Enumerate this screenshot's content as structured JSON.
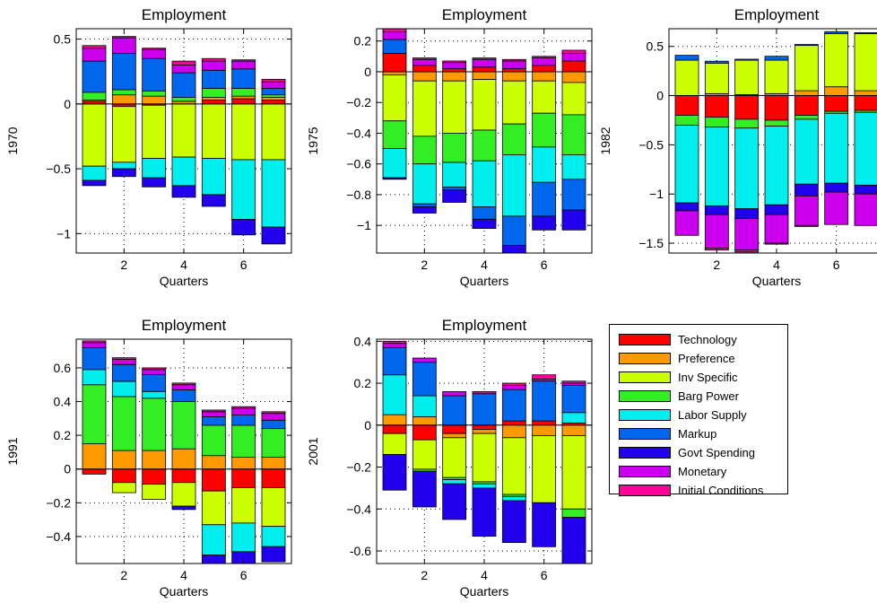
{
  "legend": {
    "items": [
      {
        "name": "Technology",
        "color": "#FF0000"
      },
      {
        "name": "Preference",
        "color": "#FF9900"
      },
      {
        "name": "Inv Specific",
        "color": "#CCFF00"
      },
      {
        "name": "Barg Power",
        "color": "#33EE22"
      },
      {
        "name": "Labor Supply",
        "color": "#00EEEE"
      },
      {
        "name": "Markup",
        "color": "#0066EE"
      },
      {
        "name": "Govt Spending",
        "color": "#2200EE"
      },
      {
        "name": "Monetary",
        "color": "#CC00EE"
      },
      {
        "name": "Initial Conditions",
        "color": "#FF0099"
      }
    ]
  },
  "chart_data": [
    {
      "type": "bar",
      "title": "Employment",
      "xlabel": "Quarters",
      "ylabel": "1970",
      "xlim": [
        0.4,
        7.6
      ],
      "ylim": [
        -1.15,
        0.58
      ],
      "xticks": [
        2,
        4,
        6
      ],
      "yticks": [
        {
          "v": -1,
          "label": "−1"
        },
        {
          "v": -0.5,
          "label": "−0.5"
        },
        {
          "v": 0,
          "label": "0"
        },
        {
          "v": 0.5,
          "label": "0.5"
        }
      ],
      "categories": [
        1,
        2,
        3,
        4,
        5,
        6,
        7
      ],
      "series": [
        {
          "name": "Technology",
          "values": [
            0.02,
            -0.02,
            -0.01,
            0.0,
            0.03,
            0.04,
            0.03
          ]
        },
        {
          "name": "Preference",
          "values": [
            0.01,
            0.07,
            0.06,
            0.02,
            0.02,
            0.02,
            0.02
          ]
        },
        {
          "name": "Inv Specific",
          "values": [
            -0.48,
            -0.43,
            -0.41,
            -0.41,
            -0.42,
            -0.43,
            -0.43
          ]
        },
        {
          "name": "Barg Power",
          "values": [
            0.06,
            0.04,
            0.04,
            0.03,
            0.07,
            0.06,
            0.02
          ]
        },
        {
          "name": "Labor Supply",
          "values": [
            -0.11,
            -0.05,
            -0.15,
            -0.22,
            -0.28,
            -0.46,
            -0.52
          ]
        },
        {
          "name": "Markup",
          "values": [
            0.24,
            0.28,
            0.25,
            0.19,
            0.14,
            0.15,
            0.05
          ]
        },
        {
          "name": "Govt Spending",
          "values": [
            -0.04,
            -0.06,
            -0.07,
            -0.09,
            -0.09,
            -0.12,
            -0.13
          ]
        },
        {
          "name": "Monetary",
          "values": [
            0.1,
            0.12,
            0.07,
            0.06,
            0.07,
            0.06,
            0.05
          ]
        },
        {
          "name": "Initial Conditions",
          "values": [
            0.02,
            0.01,
            0.01,
            0.03,
            0.02,
            0.01,
            0.02
          ]
        }
      ]
    },
    {
      "type": "bar",
      "title": "Employment",
      "xlabel": "Quarters",
      "ylabel": "1975",
      "xlim": [
        0.4,
        7.6
      ],
      "ylim": [
        -1.18,
        0.28
      ],
      "xticks": [
        2,
        4,
        6
      ],
      "yticks": [
        {
          "v": -1,
          "label": "−1"
        },
        {
          "v": -0.8,
          "label": "−0.8"
        },
        {
          "v": -0.6,
          "label": "−0.6"
        },
        {
          "v": -0.4,
          "label": "−0.4"
        },
        {
          "v": -0.2,
          "label": "−0.2"
        },
        {
          "v": 0,
          "label": "0"
        },
        {
          "v": 0.2,
          "label": "0.2"
        }
      ],
      "categories": [
        1,
        2,
        3,
        4,
        5,
        6,
        7
      ],
      "series": [
        {
          "name": "Technology",
          "values": [
            0.12,
            0.04,
            0.02,
            0.03,
            0.02,
            0.04,
            0.07
          ]
        },
        {
          "name": "Preference",
          "values": [
            -0.02,
            -0.06,
            -0.06,
            -0.05,
            -0.06,
            -0.06,
            -0.07
          ]
        },
        {
          "name": "Inv Specific",
          "values": [
            -0.3,
            -0.36,
            -0.34,
            -0.33,
            -0.28,
            -0.21,
            -0.21
          ]
        },
        {
          "name": "Barg Power",
          "values": [
            -0.18,
            -0.18,
            -0.19,
            -0.2,
            -0.2,
            -0.22,
            -0.26
          ]
        },
        {
          "name": "Labor Supply",
          "values": [
            -0.19,
            -0.26,
            -0.16,
            -0.3,
            -0.4,
            -0.23,
            -0.16
          ]
        },
        {
          "name": "Markup",
          "values": [
            0.09,
            -0.02,
            -0.02,
            -0.08,
            -0.19,
            -0.22,
            -0.2
          ]
        },
        {
          "name": "Govt Spending",
          "values": [
            -0.01,
            -0.04,
            -0.08,
            -0.06,
            -0.1,
            -0.09,
            -0.13
          ]
        },
        {
          "name": "Monetary",
          "values": [
            0.05,
            0.04,
            0.04,
            0.05,
            0.05,
            0.05,
            0.05
          ]
        },
        {
          "name": "Initial Conditions",
          "values": [
            0.02,
            0.01,
            0.01,
            0.01,
            0.01,
            0.01,
            0.02
          ]
        }
      ]
    },
    {
      "type": "bar",
      "title": "Employment",
      "xlabel": "Quarters",
      "ylabel": "1982",
      "xlim": [
        0.4,
        7.6
      ],
      "ylim": [
        -1.6,
        0.68
      ],
      "xticks": [
        2,
        4,
        6
      ],
      "yticks": [
        {
          "v": -1.5,
          "label": "−1.5"
        },
        {
          "v": -1,
          "label": "−1"
        },
        {
          "v": -0.5,
          "label": "−0.5"
        },
        {
          "v": 0,
          "label": "0"
        },
        {
          "v": 0.5,
          "label": "0.5"
        }
      ],
      "categories": [
        1,
        2,
        3,
        4,
        5,
        6,
        7
      ],
      "series": [
        {
          "name": "Technology",
          "values": [
            -0.2,
            -0.22,
            -0.24,
            -0.25,
            -0.2,
            -0.16,
            -0.15
          ]
        },
        {
          "name": "Preference",
          "values": [
            0.0,
            0.02,
            0.01,
            0.02,
            0.05,
            0.09,
            0.05
          ]
        },
        {
          "name": "Inv Specific",
          "values": [
            0.36,
            0.31,
            0.35,
            0.34,
            0.46,
            0.54,
            0.58
          ]
        },
        {
          "name": "Barg Power",
          "values": [
            -0.1,
            -0.1,
            -0.09,
            -0.06,
            -0.04,
            -0.02,
            -0.02
          ]
        },
        {
          "name": "Labor Supply",
          "values": [
            -0.79,
            -0.8,
            -0.82,
            -0.8,
            -0.66,
            -0.71,
            -0.74
          ]
        },
        {
          "name": "Markup",
          "values": [
            0.05,
            0.02,
            0.01,
            0.04,
            0.01,
            0.02,
            0.01
          ]
        },
        {
          "name": "Govt Spending",
          "values": [
            -0.08,
            -0.09,
            -0.1,
            -0.1,
            -0.12,
            -0.09,
            -0.09
          ]
        },
        {
          "name": "Monetary",
          "values": [
            -0.25,
            -0.34,
            -0.32,
            -0.29,
            -0.3,
            -0.33,
            -0.32
          ]
        },
        {
          "name": "Initial Conditions",
          "values": [
            0.0,
            -0.02,
            -0.02,
            -0.01,
            -0.01,
            0.0,
            0.0
          ]
        }
      ]
    },
    {
      "type": "bar",
      "title": "Employment",
      "xlabel": "Quarters",
      "ylabel": "1991",
      "xlim": [
        0.4,
        7.6
      ],
      "ylim": [
        -0.56,
        0.77
      ],
      "xticks": [
        2,
        4,
        6
      ],
      "yticks": [
        {
          "v": -0.4,
          "label": "−0.4"
        },
        {
          "v": -0.2,
          "label": "−0.2"
        },
        {
          "v": 0,
          "label": "0"
        },
        {
          "v": 0.2,
          "label": "0.2"
        },
        {
          "v": 0.4,
          "label": "0.4"
        },
        {
          "v": 0.6,
          "label": "0.6"
        }
      ],
      "categories": [
        1,
        2,
        3,
        4,
        5,
        6,
        7
      ],
      "series": [
        {
          "name": "Technology",
          "values": [
            -0.03,
            -0.08,
            -0.09,
            -0.08,
            -0.13,
            -0.11,
            -0.11
          ]
        },
        {
          "name": "Preference",
          "values": [
            0.15,
            0.11,
            0.11,
            0.12,
            0.08,
            0.07,
            0.07
          ]
        },
        {
          "name": "Inv Specific",
          "values": [
            0.0,
            -0.06,
            -0.09,
            -0.14,
            -0.2,
            -0.21,
            -0.23
          ]
        },
        {
          "name": "Barg Power",
          "values": [
            0.35,
            0.32,
            0.31,
            0.28,
            0.18,
            0.19,
            0.17
          ]
        },
        {
          "name": "Labor Supply",
          "values": [
            0.09,
            0.09,
            0.04,
            0.0,
            -0.18,
            -0.17,
            -0.12
          ]
        },
        {
          "name": "Markup",
          "values": [
            0.13,
            0.1,
            0.1,
            0.07,
            0.05,
            0.06,
            0.05
          ]
        },
        {
          "name": "Govt Spending",
          "values": [
            0.0,
            0.0,
            0.0,
            -0.02,
            -0.05,
            -0.07,
            -0.09
          ]
        },
        {
          "name": "Monetary",
          "values": [
            0.03,
            0.03,
            0.03,
            0.03,
            0.03,
            0.04,
            0.04
          ]
        },
        {
          "name": "Initial Conditions",
          "values": [
            0.01,
            0.01,
            0.01,
            0.01,
            0.01,
            0.01,
            0.01
          ]
        }
      ]
    },
    {
      "type": "bar",
      "title": "Employment",
      "xlabel": "Quarters",
      "ylabel": "2001",
      "xlim": [
        0.4,
        7.6
      ],
      "ylim": [
        -0.66,
        0.41
      ],
      "xticks": [
        2,
        4,
        6
      ],
      "yticks": [
        {
          "v": -0.6,
          "label": "-0.6"
        },
        {
          "v": -0.4,
          "label": "−0.4"
        },
        {
          "v": -0.2,
          "label": "−0.2"
        },
        {
          "v": 0,
          "label": "0"
        },
        {
          "v": 0.2,
          "label": "0.2"
        },
        {
          "v": 0.4,
          "label": "0.4"
        }
      ],
      "categories": [
        1,
        2,
        3,
        4,
        5,
        6,
        7
      ],
      "series": [
        {
          "name": "Technology",
          "values": [
            -0.04,
            -0.07,
            -0.04,
            -0.02,
            0.02,
            0.02,
            0.01
          ]
        },
        {
          "name": "Preference",
          "values": [
            0.05,
            0.04,
            -0.02,
            -0.02,
            -0.06,
            -0.05,
            -0.05
          ]
        },
        {
          "name": "Inv Specific",
          "values": [
            -0.1,
            -0.14,
            -0.19,
            -0.23,
            -0.27,
            -0.32,
            -0.35
          ]
        },
        {
          "name": "Barg Power",
          "values": [
            0.0,
            -0.01,
            -0.01,
            -0.01,
            -0.01,
            0.0,
            -0.04
          ]
        },
        {
          "name": "Labor Supply",
          "values": [
            0.19,
            0.1,
            -0.02,
            -0.02,
            -0.02,
            0.0,
            0.05
          ]
        },
        {
          "name": "Markup",
          "values": [
            0.13,
            0.16,
            0.14,
            0.15,
            0.15,
            0.19,
            0.13
          ]
        },
        {
          "name": "Govt Spending",
          "values": [
            -0.17,
            -0.17,
            -0.17,
            -0.23,
            -0.2,
            -0.21,
            -0.22
          ]
        },
        {
          "name": "Monetary",
          "values": [
            0.02,
            0.02,
            0.02,
            0.01,
            0.02,
            0.01,
            0.01
          ]
        },
        {
          "name": "Initial Conditions",
          "values": [
            0.01,
            0.0,
            0.0,
            0.0,
            0.01,
            0.02,
            0.01
          ]
        }
      ]
    }
  ]
}
